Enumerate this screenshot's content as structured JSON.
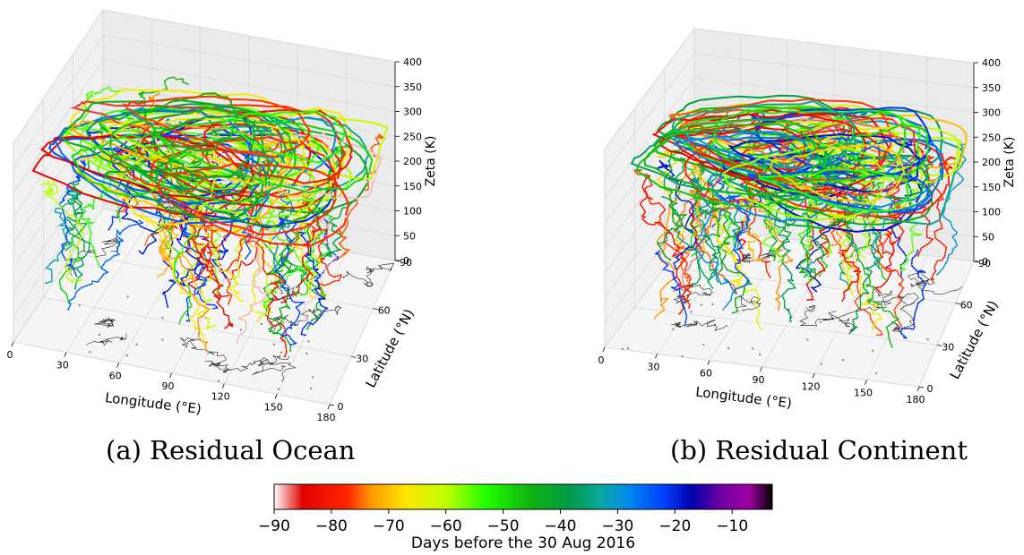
{
  "chart_data": [
    {
      "type": "scatter",
      "subtype": "3d-trajectory",
      "caption": "(a) Residual Ocean",
      "xlabel": "Longitude (°E)",
      "ylabel": "Latitude (°N)",
      "zlabel": "Zeta (K)",
      "xticks": [
        "0",
        "30",
        "60",
        "90",
        "120",
        "150",
        "180"
      ],
      "yticks": [
        "0",
        "30",
        "60",
        "90"
      ],
      "zticks": [
        "0",
        "50",
        "100",
        "150",
        "200",
        "250",
        "300",
        "350",
        "400"
      ],
      "xlim": [
        0,
        180
      ],
      "ylim": [
        0,
        90
      ],
      "zlim": [
        0,
        400
      ],
      "grid": true,
      "basemap": "coastlines",
      "trajectory_style": "lines and dots colored by days before 30 Aug 2016",
      "seed": 11
    },
    {
      "type": "scatter",
      "subtype": "3d-trajectory",
      "caption": "(b) Residual Continent",
      "xlabel": "Longitude (°E)",
      "ylabel": "Latitude (°N)",
      "zlabel": "Zeta (K)",
      "xticks": [
        "0",
        "30",
        "60",
        "90",
        "120",
        "150",
        "180"
      ],
      "yticks": [
        "0",
        "30",
        "60",
        "90"
      ],
      "zticks": [
        "0",
        "50",
        "100",
        "150",
        "200",
        "250",
        "300",
        "350",
        "400"
      ],
      "xlim": [
        0,
        180
      ],
      "ylim": [
        0,
        90
      ],
      "zlim": [
        0,
        400
      ],
      "grid": true,
      "basemap": "coastlines",
      "trajectory_style": "lines and dots colored by days before 30 Aug 2016",
      "seed": 29
    }
  ],
  "colorbar": {
    "label": "Days before the 30 Aug 2016",
    "ticks": [
      "−90",
      "−80",
      "−70",
      "−60",
      "−50",
      "−40",
      "−30",
      "−20",
      "−10"
    ],
    "tick_values": [
      -90,
      -80,
      -70,
      -60,
      -50,
      -40,
      -30,
      -20,
      -10
    ],
    "range": [
      -90,
      -3
    ],
    "colormap_stops": [
      {
        "value": -90,
        "color": "#ffffff"
      },
      {
        "value": -85,
        "color": "#e00000"
      },
      {
        "value": -77,
        "color": "#ff2a00"
      },
      {
        "value": -73,
        "color": "#ff9900"
      },
      {
        "value": -67,
        "color": "#ffe600"
      },
      {
        "value": -60,
        "color": "#bfff00"
      },
      {
        "value": -53,
        "color": "#22ff00"
      },
      {
        "value": -45,
        "color": "#10b010"
      },
      {
        "value": -38,
        "color": "#009a4a"
      },
      {
        "value": -33,
        "color": "#0aa8a0"
      },
      {
        "value": -28,
        "color": "#0088ee"
      },
      {
        "value": -22,
        "color": "#0040ff"
      },
      {
        "value": -17,
        "color": "#0000aa"
      },
      {
        "value": -12,
        "color": "#6f00a0"
      },
      {
        "value": -7,
        "color": "#a000a0"
      },
      {
        "value": -3,
        "color": "#000000"
      }
    ]
  }
}
